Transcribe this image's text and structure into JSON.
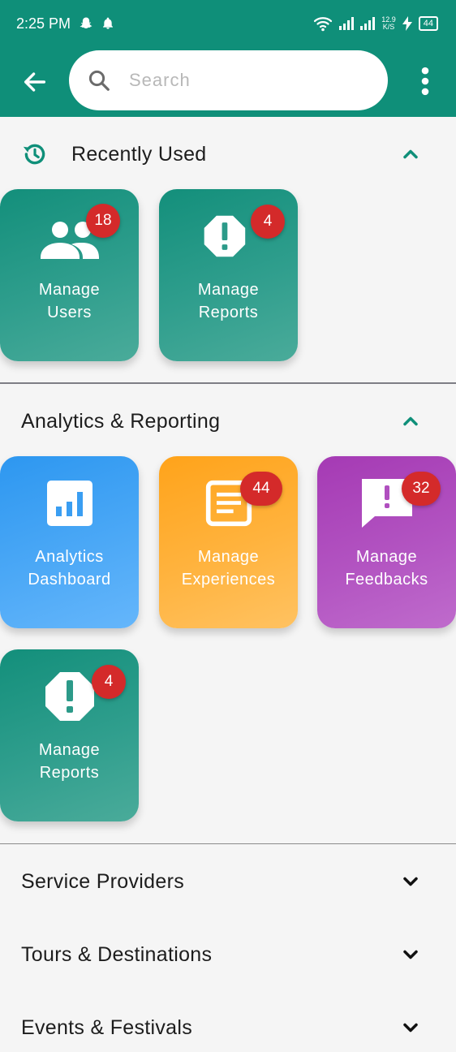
{
  "status_bar": {
    "time": "2:25 PM",
    "speed_top": "12.9",
    "speed_bottom": "K/S",
    "battery": "44",
    "icons": [
      "snapchat-icon",
      "notification-bell-icon",
      "wifi-icon",
      "signal-icon",
      "charging-icon",
      "battery-icon"
    ]
  },
  "app_bar": {
    "search_placeholder": "Search",
    "back_icon": "arrow-back-icon",
    "more_icon": "more-vertical-icon"
  },
  "recently_used": {
    "title": "Recently Used",
    "icon": "history-icon",
    "tiles": [
      {
        "label": "Manage\nUsers",
        "badge": "18",
        "icon": "users-icon",
        "color": "#2a9a88"
      },
      {
        "label": "Manage\nReports",
        "badge": "4",
        "icon": "report-alert-icon",
        "color": "#2a9a88"
      }
    ]
  },
  "analytics": {
    "title": "Analytics & Reporting",
    "tiles": [
      {
        "label": "Analytics\nDashboard",
        "badge": "",
        "icon": "bar-chart-icon",
        "color": "#4aa6f5"
      },
      {
        "label": "Manage\nExperiences",
        "badge": "44",
        "icon": "article-icon",
        "color": "#ffb03a"
      },
      {
        "label": "Manage\nFeedbacks",
        "badge": "32",
        "icon": "feedback-icon",
        "color": "#b04fbf"
      },
      {
        "label": "Manage\nReports",
        "badge": "4",
        "icon": "report-alert-icon",
        "color": "#2a9a88"
      }
    ]
  },
  "collapsed_sections": [
    {
      "title": "Service Providers"
    },
    {
      "title": "Tours & Destinations"
    },
    {
      "title": "Events & Festivals"
    }
  ]
}
